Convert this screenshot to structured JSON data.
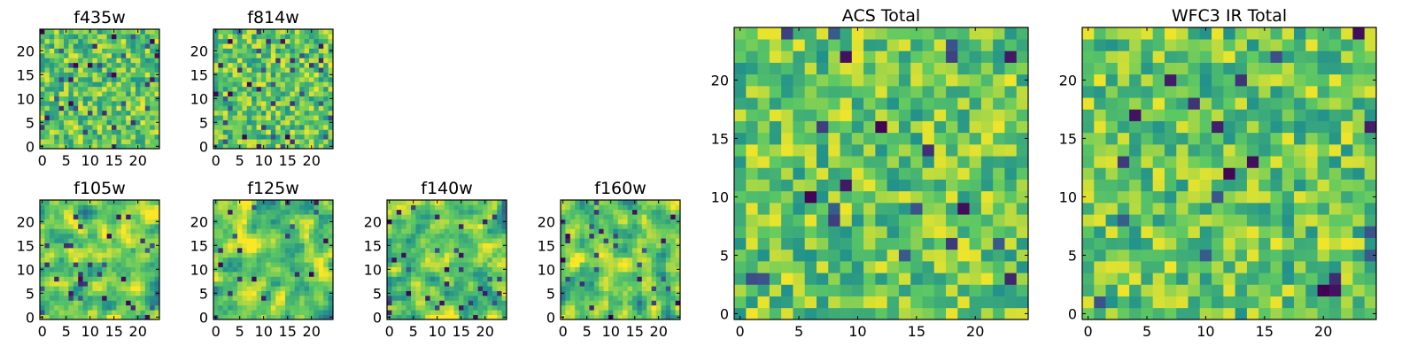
{
  "figure": {
    "background": "#ffffff",
    "colormap": "viridis",
    "colormap_stops": [
      "#440154",
      "#3b528b",
      "#21918c",
      "#5ec962",
      "#fde725"
    ]
  },
  "chart_data": [
    {
      "type": "heatmap",
      "title": "f435w",
      "grid_size": 25,
      "origin": "lower",
      "xlim": [
        0,
        24
      ],
      "ylim": [
        0,
        24
      ],
      "xticks": [
        "0",
        "5",
        "10",
        "15",
        "20"
      ],
      "yticks": [
        "0",
        "5",
        "10",
        "15",
        "20"
      ],
      "seed": 11,
      "smooth": 0,
      "dark_fraction": 0.06
    },
    {
      "type": "heatmap",
      "title": "f814w",
      "grid_size": 25,
      "origin": "lower",
      "xlim": [
        0,
        24
      ],
      "ylim": [
        0,
        24
      ],
      "xticks": [
        "0",
        "5",
        "10",
        "15",
        "20"
      ],
      "yticks": [
        "0",
        "5",
        "10",
        "15",
        "20"
      ],
      "seed": 23,
      "smooth": 0,
      "dark_fraction": 0.06
    },
    {
      "type": "heatmap",
      "title": "f105w",
      "grid_size": 25,
      "origin": "lower",
      "xlim": [
        0,
        24
      ],
      "ylim": [
        0,
        24
      ],
      "xticks": [
        "0",
        "5",
        "10",
        "15",
        "20"
      ],
      "yticks": [
        "0",
        "5",
        "10",
        "15",
        "20"
      ],
      "seed": 37,
      "smooth": 1,
      "dark_fraction": 0.05
    },
    {
      "type": "heatmap",
      "title": "f125w",
      "grid_size": 25,
      "origin": "lower",
      "xlim": [
        0,
        24
      ],
      "ylim": [
        0,
        24
      ],
      "xticks": [
        "0",
        "5",
        "10",
        "15",
        "20"
      ],
      "yticks": [
        "0",
        "5",
        "10",
        "15",
        "20"
      ],
      "seed": 41,
      "smooth": 1,
      "dark_fraction": 0.04
    },
    {
      "type": "heatmap",
      "title": "f140w",
      "grid_size": 25,
      "origin": "lower",
      "xlim": [
        0,
        24
      ],
      "ylim": [
        0,
        24
      ],
      "xticks": [
        "0",
        "5",
        "10",
        "15",
        "20"
      ],
      "yticks": [
        "0",
        "5",
        "10",
        "15",
        "20"
      ],
      "seed": 53,
      "smooth": 1,
      "dark_fraction": 0.04
    },
    {
      "type": "heatmap",
      "title": "f160w",
      "grid_size": 25,
      "origin": "lower",
      "xlim": [
        0,
        24
      ],
      "ylim": [
        0,
        24
      ],
      "xticks": [
        "0",
        "5",
        "10",
        "15",
        "20"
      ],
      "yticks": [
        "0",
        "5",
        "10",
        "15",
        "20"
      ],
      "seed": 67,
      "smooth": 1,
      "dark_fraction": 0.04
    },
    {
      "type": "heatmap",
      "title": "ACS Total",
      "grid_size": 25,
      "origin": "lower",
      "xlim": [
        0,
        24
      ],
      "ylim": [
        0,
        24
      ],
      "xticks": [
        "0",
        "5",
        "10",
        "15",
        "20"
      ],
      "yticks": [
        "0",
        "5",
        "10",
        "15",
        "20"
      ],
      "seed": 79,
      "smooth": 0,
      "dark_fraction": 0.03
    },
    {
      "type": "heatmap",
      "title": "WFC3 IR Total",
      "grid_size": 25,
      "origin": "lower",
      "xlim": [
        0,
        24
      ],
      "ylim": [
        0,
        24
      ],
      "xticks": [
        "0",
        "5",
        "10",
        "15",
        "20"
      ],
      "yticks": [
        "0",
        "5",
        "10",
        "15",
        "20"
      ],
      "seed": 97,
      "smooth": 0,
      "dark_fraction": 0.03
    }
  ]
}
